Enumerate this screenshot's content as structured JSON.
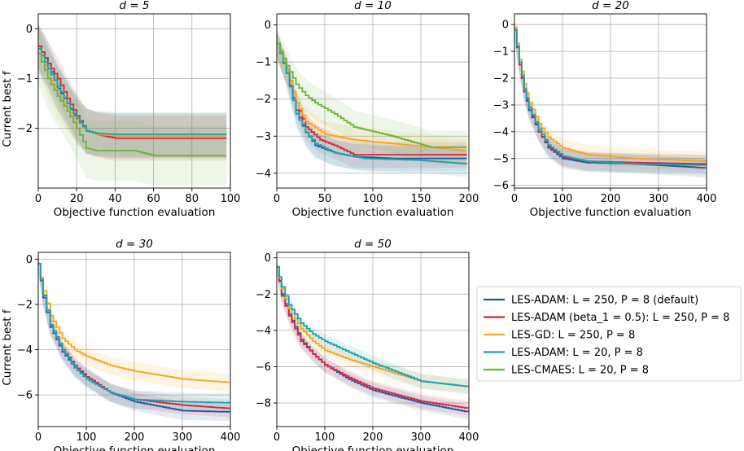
{
  "series_styles": [
    {
      "name": "LES-ADAM: L = 250, P = 8 (default)",
      "color": "#1f5aa0"
    },
    {
      "name": "LES-ADAM (beta_1 = 0.5): L = 250, P = 8",
      "color": "#d7263d"
    },
    {
      "name": "LES-GD: L = 250, P = 8",
      "color": "#f5a623"
    },
    {
      "name": "LES-ADAM: L = 20, P = 8",
      "color": "#17a2b0"
    },
    {
      "name": "LES-CMAES: L = 20, P = 8",
      "color": "#6ab43e"
    }
  ],
  "chart_data": [
    {
      "type": "line",
      "title": "d = 5",
      "xlabel": "Objective function evaluation",
      "ylabel": "Current best f",
      "xlim": [
        0,
        100
      ],
      "ylim": [
        -3.2,
        0.3
      ],
      "xticks": [
        0,
        20,
        40,
        60,
        80,
        100
      ],
      "yticks": [
        0,
        -1,
        -2
      ],
      "xmax_data": 98,
      "grid": true,
      "series": [
        {
          "name": "LES-ADAM: L = 250, P = 8 (default)",
          "points": [
            [
              0,
              -0.35
            ],
            [
              5,
              -0.7
            ],
            [
              10,
              -1.2
            ],
            [
              15,
              -1.5
            ],
            [
              20,
              -1.85
            ],
            [
              25,
              -2.05
            ],
            [
              30,
              -2.12
            ],
            [
              40,
              -2.15
            ],
            [
              98,
              -2.15
            ]
          ],
          "band": 0.45
        },
        {
          "name": "LES-ADAM (beta_1 = 0.5): L = 250, P = 8",
          "points": [
            [
              0,
              -0.35
            ],
            [
              5,
              -0.7
            ],
            [
              10,
              -1.0
            ],
            [
              15,
              -1.4
            ],
            [
              20,
              -1.75
            ],
            [
              25,
              -2.05
            ],
            [
              30,
              -2.12
            ],
            [
              40,
              -2.2
            ],
            [
              98,
              -2.2
            ]
          ],
          "band": 0.45
        },
        {
          "name": "LES-GD: L = 250, P = 8",
          "points": [
            [
              0,
              -0.4
            ],
            [
              5,
              -0.9
            ],
            [
              10,
              -1.35
            ],
            [
              15,
              -1.6
            ],
            [
              20,
              -1.85
            ],
            [
              25,
              -2.05
            ],
            [
              30,
              -2.12
            ],
            [
              40,
              -2.15
            ],
            [
              98,
              -2.15
            ]
          ],
          "band": 0.45
        },
        {
          "name": "LES-ADAM: L = 20, P = 8",
          "points": [
            [
              0,
              -0.4
            ],
            [
              5,
              -0.8
            ],
            [
              10,
              -1.15
            ],
            [
              15,
              -1.5
            ],
            [
              20,
              -1.8
            ],
            [
              25,
              -2.05
            ],
            [
              30,
              -2.1
            ],
            [
              40,
              -2.12
            ],
            [
              98,
              -2.12
            ]
          ],
          "band": 0.45
        },
        {
          "name": "LES-CMAES: L = 20, P = 8",
          "points": [
            [
              0,
              -0.5
            ],
            [
              5,
              -1.0
            ],
            [
              10,
              -1.35
            ],
            [
              15,
              -1.65
            ],
            [
              20,
              -2.0
            ],
            [
              25,
              -2.4
            ],
            [
              30,
              -2.45
            ],
            [
              50,
              -2.45
            ],
            [
              60,
              -2.55
            ],
            [
              98,
              -2.55
            ]
          ],
          "band": 0.6
        }
      ]
    },
    {
      "type": "line",
      "title": "d = 10",
      "xlabel": "Objective function evaluation",
      "ylabel": "",
      "xlim": [
        0,
        200
      ],
      "ylim": [
        -4.4,
        0.3
      ],
      "xticks": [
        0,
        50,
        100,
        150,
        200
      ],
      "yticks": [
        0,
        -1,
        -2,
        -3,
        -4
      ],
      "xmax_data": 198,
      "grid": true,
      "series": [
        {
          "name": "LES-ADAM: L = 250, P = 8 (default)",
          "points": [
            [
              0,
              -0.5
            ],
            [
              10,
              -1.3
            ],
            [
              20,
              -2.3
            ],
            [
              30,
              -2.9
            ],
            [
              40,
              -3.25
            ],
            [
              60,
              -3.45
            ],
            [
              80,
              -3.55
            ],
            [
              120,
              -3.6
            ],
            [
              198,
              -3.6
            ]
          ],
          "band": 0.35
        },
        {
          "name": "LES-ADAM (beta_1 = 0.5): L = 250, P = 8",
          "points": [
            [
              0,
              -0.5
            ],
            [
              10,
              -1.2
            ],
            [
              20,
              -2.1
            ],
            [
              30,
              -2.75
            ],
            [
              45,
              -3.1
            ],
            [
              60,
              -3.25
            ],
            [
              80,
              -3.5
            ],
            [
              198,
              -3.5
            ]
          ],
          "band": 0.35
        },
        {
          "name": "LES-GD: L = 250, P = 8",
          "points": [
            [
              0,
              -0.5
            ],
            [
              10,
              -1.2
            ],
            [
              20,
              -2.1
            ],
            [
              30,
              -2.6
            ],
            [
              50,
              -2.95
            ],
            [
              80,
              -3.1
            ],
            [
              120,
              -3.2
            ],
            [
              160,
              -3.3
            ],
            [
              198,
              -3.4
            ]
          ],
          "band": 0.35
        },
        {
          "name": "LES-ADAM: L = 20, P = 8",
          "points": [
            [
              0,
              -0.5
            ],
            [
              10,
              -1.3
            ],
            [
              20,
              -2.4
            ],
            [
              30,
              -2.9
            ],
            [
              40,
              -3.2
            ],
            [
              60,
              -3.45
            ],
            [
              90,
              -3.6
            ],
            [
              150,
              -3.65
            ],
            [
              198,
              -3.75
            ]
          ],
          "band": 0.35
        },
        {
          "name": "LES-CMAES: L = 20, P = 8",
          "points": [
            [
              0,
              -0.5
            ],
            [
              10,
              -1.1
            ],
            [
              20,
              -1.6
            ],
            [
              30,
              -1.9
            ],
            [
              40,
              -2.1
            ],
            [
              60,
              -2.4
            ],
            [
              80,
              -2.75
            ],
            [
              120,
              -3.0
            ],
            [
              160,
              -3.3
            ],
            [
              198,
              -3.3
            ]
          ],
          "band": 0.45
        }
      ]
    },
    {
      "type": "line",
      "title": "d = 20",
      "xlabel": "Objective function evaluation",
      "ylabel": "",
      "xlim": [
        0,
        400
      ],
      "ylim": [
        -6.1,
        0.4
      ],
      "xticks": [
        0,
        100,
        200,
        300,
        400
      ],
      "yticks": [
        0,
        -1,
        -2,
        -3,
        -4,
        -5,
        -6
      ],
      "xmax_data": 398,
      "grid": true,
      "series": [
        {
          "name": "LES-ADAM: L = 250, P = 8 (default)",
          "points": [
            [
              0,
              -0.2
            ],
            [
              10,
              -1.5
            ],
            [
              20,
              -2.5
            ],
            [
              30,
              -3.2
            ],
            [
              50,
              -4.0
            ],
            [
              70,
              -4.6
            ],
            [
              100,
              -5.0
            ],
            [
              150,
              -5.15
            ],
            [
              250,
              -5.2
            ],
            [
              398,
              -5.35
            ]
          ],
          "band": 0.35
        },
        {
          "name": "LES-ADAM (beta_1 = 0.5): L = 250, P = 8",
          "points": [
            [
              0,
              -0.2
            ],
            [
              10,
              -1.5
            ],
            [
              20,
              -2.5
            ],
            [
              30,
              -3.1
            ],
            [
              50,
              -4.0
            ],
            [
              70,
              -4.55
            ],
            [
              100,
              -4.95
            ],
            [
              150,
              -5.1
            ],
            [
              250,
              -5.15
            ],
            [
              398,
              -5.2
            ]
          ],
          "band": 0.35
        },
        {
          "name": "LES-GD: L = 250, P = 8",
          "points": [
            [
              0,
              -0.1
            ],
            [
              10,
              -1.3
            ],
            [
              20,
              -2.2
            ],
            [
              30,
              -2.9
            ],
            [
              50,
              -3.7
            ],
            [
              70,
              -4.2
            ],
            [
              100,
              -4.6
            ],
            [
              150,
              -4.85
            ],
            [
              250,
              -5.0
            ],
            [
              398,
              -5.1
            ]
          ],
          "band": 0.35
        },
        {
          "name": "LES-ADAM: L = 20, P = 8",
          "points": [
            [
              0,
              -0.2
            ],
            [
              10,
              -1.4
            ],
            [
              20,
              -2.4
            ],
            [
              30,
              -3.1
            ],
            [
              50,
              -3.9
            ],
            [
              70,
              -4.5
            ],
            [
              100,
              -4.9
            ],
            [
              150,
              -5.1
            ],
            [
              250,
              -5.2
            ],
            [
              398,
              -5.25
            ]
          ],
          "band": 0.35
        }
      ]
    },
    {
      "type": "line",
      "title": "d = 30",
      "xlabel": "Objective function evaluation",
      "ylabel": "Current best f",
      "xlim": [
        0,
        400
      ],
      "ylim": [
        -7.4,
        0.3
      ],
      "xticks": [
        0,
        100,
        200,
        300,
        400
      ],
      "yticks": [
        0,
        -2,
        -4,
        -6
      ],
      "xmax_data": 398,
      "grid": true,
      "series": [
        {
          "name": "LES-ADAM: L = 250, P = 8 (default)",
          "points": [
            [
              0,
              -0.2
            ],
            [
              10,
              -1.7
            ],
            [
              25,
              -3.0
            ],
            [
              50,
              -4.1
            ],
            [
              75,
              -4.8
            ],
            [
              100,
              -5.2
            ],
            [
              150,
              -5.9
            ],
            [
              200,
              -6.3
            ],
            [
              300,
              -6.7
            ],
            [
              398,
              -6.75
            ]
          ],
          "band": 0.4
        },
        {
          "name": "LES-ADAM (beta_1 = 0.5): L = 250, P = 8",
          "points": [
            [
              0,
              -0.2
            ],
            [
              10,
              -1.6
            ],
            [
              25,
              -2.9
            ],
            [
              50,
              -4.0
            ],
            [
              75,
              -4.7
            ],
            [
              100,
              -5.2
            ],
            [
              150,
              -5.9
            ],
            [
              200,
              -6.2
            ],
            [
              300,
              -6.45
            ],
            [
              398,
              -6.6
            ]
          ],
          "band": 0.4
        },
        {
          "name": "LES-GD: L = 250, P = 8",
          "points": [
            [
              0,
              -0.2
            ],
            [
              10,
              -1.4
            ],
            [
              25,
              -2.5
            ],
            [
              50,
              -3.5
            ],
            [
              75,
              -4.0
            ],
            [
              100,
              -4.3
            ],
            [
              150,
              -4.7
            ],
            [
              200,
              -4.95
            ],
            [
              300,
              -5.3
            ],
            [
              398,
              -5.45
            ]
          ],
          "band": 0.4
        },
        {
          "name": "LES-ADAM: L = 20, P = 8",
          "points": [
            [
              0,
              -0.2
            ],
            [
              10,
              -1.6
            ],
            [
              25,
              -2.9
            ],
            [
              50,
              -4.0
            ],
            [
              75,
              -4.8
            ],
            [
              100,
              -5.3
            ],
            [
              150,
              -5.9
            ],
            [
              200,
              -6.2
            ],
            [
              300,
              -6.3
            ],
            [
              398,
              -6.35
            ]
          ],
          "band": 0.4
        }
      ]
    },
    {
      "type": "line",
      "title": "d = 50",
      "xlabel": "Objective function evaluation",
      "ylabel": "",
      "xlim": [
        0,
        400
      ],
      "ylim": [
        -9.3,
        0.3
      ],
      "xticks": [
        0,
        100,
        200,
        300,
        400
      ],
      "yticks": [
        0,
        -2,
        -4,
        -6,
        -8
      ],
      "xmax_data": 398,
      "grid": true,
      "series": [
        {
          "name": "LES-ADAM: L = 250, P = 8 (default)",
          "points": [
            [
              0,
              -0.5
            ],
            [
              10,
              -2.0
            ],
            [
              25,
              -3.1
            ],
            [
              50,
              -4.5
            ],
            [
              75,
              -5.3
            ],
            [
              100,
              -5.9
            ],
            [
              150,
              -6.7
            ],
            [
              200,
              -7.3
            ],
            [
              300,
              -8.0
            ],
            [
              398,
              -8.5
            ]
          ],
          "band": 0.4
        },
        {
          "name": "LES-ADAM (beta_1 = 0.5): L = 250, P = 8",
          "points": [
            [
              0,
              -0.5
            ],
            [
              10,
              -2.1
            ],
            [
              25,
              -3.2
            ],
            [
              50,
              -4.6
            ],
            [
              75,
              -5.3
            ],
            [
              100,
              -5.9
            ],
            [
              150,
              -6.6
            ],
            [
              200,
              -7.2
            ],
            [
              300,
              -7.9
            ],
            [
              398,
              -8.3
            ]
          ],
          "band": 0.4
        },
        {
          "name": "LES-GD: L = 250, P = 8",
          "points": [
            [
              0,
              -0.5
            ],
            [
              10,
              -1.7
            ],
            [
              25,
              -2.8
            ],
            [
              50,
              -3.9
            ],
            [
              75,
              -4.6
            ],
            [
              100,
              -5.1
            ],
            [
              150,
              -5.6
            ],
            [
              200,
              -6.0
            ],
            [
              300,
              -6.8
            ],
            [
              398,
              -7.1
            ]
          ],
          "band": 0.4
        },
        {
          "name": "LES-ADAM: L = 20, P = 8",
          "points": [
            [
              0,
              -0.5
            ],
            [
              10,
              -1.6
            ],
            [
              25,
              -2.6
            ],
            [
              50,
              -3.6
            ],
            [
              75,
              -4.2
            ],
            [
              100,
              -4.6
            ],
            [
              150,
              -5.2
            ],
            [
              200,
              -5.8
            ],
            [
              300,
              -6.8
            ],
            [
              398,
              -7.1
            ]
          ],
          "band": 0.4
        }
      ]
    }
  ]
}
